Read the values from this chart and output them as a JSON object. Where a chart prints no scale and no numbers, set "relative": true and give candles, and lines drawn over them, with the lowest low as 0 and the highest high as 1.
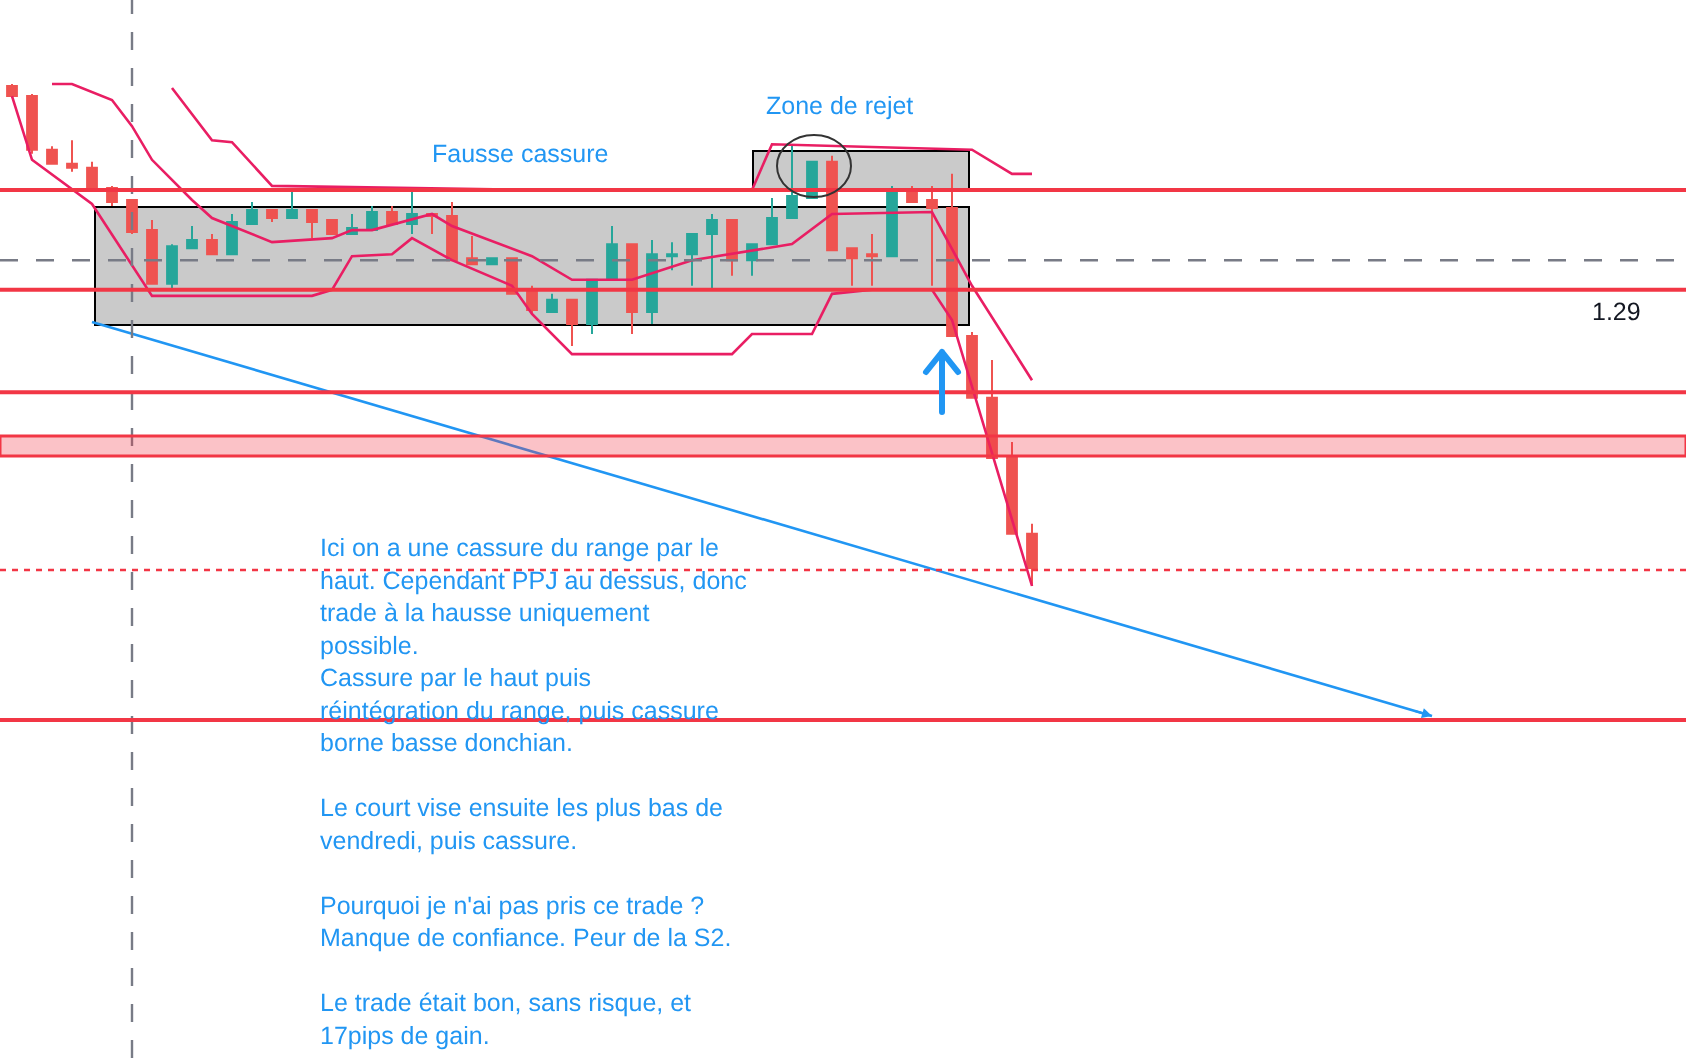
{
  "chart_data": {
    "type": "candlestick",
    "relative": true,
    "grid": false,
    "categories": [
      null,
      null,
      null,
      null,
      null,
      null,
      null,
      null,
      null,
      null,
      null,
      null,
      null,
      null,
      null,
      null,
      null,
      null,
      null,
      null,
      null,
      null,
      null,
      null,
      null,
      null,
      null,
      null,
      null,
      null,
      null,
      null,
      null,
      null,
      null,
      null,
      null,
      null,
      null,
      null,
      null,
      null,
      null,
      null,
      null,
      null,
      null,
      null,
      null,
      null,
      null,
      null,
      null,
      null,
      null,
      null,
      null,
      null,
      null,
      null,
      null,
      null,
      null,
      null,
      null,
      null,
      null,
      null,
      null,
      null,
      null,
      null,
      null,
      null,
      null,
      null,
      null,
      null,
      null,
      null,
      null,
      null,
      null,
      null
    ],
    "ohlc": [
      [
        0.996,
        1,
        0.972,
        0.976
      ],
      [
        0.976,
        0.98,
        0.861,
        0.869
      ],
      [
        0.869,
        0.876,
        0.841,
        0.841
      ],
      [
        0.841,
        0.888,
        0.825,
        0.833
      ],
      [
        0.833,
        0.845,
        0.793,
        0.793
      ],
      [
        0.793,
        0.797,
        0.757,
        0.765
      ],
      [
        0.769,
        0.769,
        0.701,
        0.705
      ],
      [
        0.709,
        0.729,
        0.602,
        0.602
      ],
      [
        0.602,
        0.681,
        0.59,
        0.677
      ],
      [
        0.673,
        0.717,
        0.673,
        0.689
      ],
      [
        0.689,
        0.701,
        0.661,
        0.661
      ],
      [
        0.661,
        0.741,
        0.661,
        0.725
      ],
      [
        0.721,
        0.765,
        0.721,
        0.749
      ],
      [
        0.749,
        0.749,
        0.725,
        0.733
      ],
      [
        0.733,
        0.785,
        0.733,
        0.749
      ],
      [
        0.749,
        0.749,
        0.693,
        0.725
      ],
      [
        0.729,
        0.729,
        0.701,
        0.701
      ],
      [
        0.701,
        0.741,
        0.701,
        0.713
      ],
      [
        0.709,
        0.757,
        0.709,
        0.745
      ],
      [
        0.745,
        0.757,
        0.721,
        0.721
      ],
      [
        0.721,
        0.785,
        0.701,
        0.741
      ],
      [
        0.741,
        0.741,
        0.701,
        0.737
      ],
      [
        0.737,
        0.765,
        0.649,
        0.649
      ],
      [
        0.653,
        0.697,
        0.641,
        0.641
      ],
      [
        0.641,
        0.653,
        0.641,
        0.653
      ],
      [
        0.653,
        0.653,
        0.582,
        0.582
      ],
      [
        0.586,
        0.598,
        0.542,
        0.55
      ],
      [
        0.546,
        0.582,
        0.546,
        0.57
      ],
      [
        0.57,
        0.57,
        0.478,
        0.522
      ],
      [
        0.522,
        0.61,
        0.502,
        0.61
      ],
      [
        0.61,
        0.717,
        0.61,
        0.681
      ],
      [
        0.681,
        0.681,
        0.502,
        0.546
      ],
      [
        0.546,
        0.689,
        0.522,
        0.661
      ],
      [
        0.657,
        0.685,
        0.629,
        0.661
      ],
      [
        0.661,
        0.701,
        0.598,
        0.701
      ],
      [
        0.701,
        0.741,
        0.59,
        0.729
      ],
      [
        0.729,
        0.729,
        0.618,
        0.649
      ],
      [
        0.649,
        0.681,
        0.618,
        0.681
      ],
      [
        0.681,
        0.773,
        0.681,
        0.733
      ],
      [
        0.733,
        0.88,
        0.733,
        0.777
      ],
      [
        0.773,
        0.845,
        0.773,
        0.845
      ],
      [
        0.845,
        0.857,
        0.669,
        0.669
      ],
      [
        0.673,
        0.673,
        0.598,
        0.653
      ],
      [
        0.661,
        0.701,
        0.598,
        0.657
      ],
      [
        0.657,
        0.797,
        0.657,
        0.789
      ],
      [
        0.789,
        0.797,
        0.765,
        0.765
      ],
      [
        0.769,
        0.797,
        0.598,
        0.753
      ],
      [
        0.753,
        0.821,
        0.498,
        0.498
      ],
      [
        0.498,
        0.506,
        0.375,
        0.375
      ],
      [
        0.375,
        0.45,
        0.255,
        0.255
      ],
      [
        0.259,
        0.287,
        0.104,
        0.104
      ],
      [
        0.104,
        0.124,
        0,
        0.036
      ],
      null,
      null,
      null,
      null,
      null,
      null,
      null,
      null,
      null,
      null,
      null,
      null,
      null,
      null,
      null,
      null,
      null,
      null,
      null,
      null,
      null,
      null,
      null,
      null,
      null,
      null,
      null,
      null,
      null,
      null,
      null,
      null
    ],
    "series": [
      {
        "type": "line",
        "color": "#e91e63",
        "values": [
          null,
          null,
          null,
          null,
          null,
          null,
          null,
          null,
          0.992,
          null,
          0.888,
          0.884,
          null,
          0.797,
          null,
          null,
          null,
          null,
          null,
          null,
          null,
          null,
          null,
          null,
          null,
          null,
          0.789,
          null,
          null,
          null,
          null,
          null,
          null,
          null,
          null,
          null,
          null,
          0.789,
          0.88,
          null,
          null,
          null,
          null,
          null,
          null,
          null,
          null,
          null,
          0.869,
          null,
          0.821,
          0.821,
          null,
          null,
          null,
          null,
          null,
          null,
          null,
          null,
          null,
          null,
          null,
          null,
          null,
          null,
          null,
          null,
          null,
          null,
          null,
          null,
          null,
          null,
          null,
          null,
          null,
          null,
          null,
          null,
          null,
          null,
          null,
          null
        ]
      },
      {
        "type": "line",
        "color": "#e91e63",
        "values": [
          null,
          null,
          1,
          1,
          null,
          0.968,
          0.916,
          0.849,
          null,
          0.769,
          0.733,
          null,
          null,
          0.685,
          null,
          null,
          0.693,
          0.709,
          0.709,
          null,
          null,
          0.741,
          0.717,
          null,
          null,
          null,
          0.657,
          null,
          0.61,
          null,
          null,
          0.61,
          null,
          null,
          0.649,
          null,
          null,
          null,
          null,
          0.681,
          null,
          0.741,
          null,
          null,
          null,
          null,
          0.745,
          null,
          0.598,
          null,
          null,
          0.41,
          null,
          null,
          null,
          null,
          null,
          null,
          null,
          null,
          null,
          null,
          null,
          null,
          null,
          null,
          null,
          null,
          null,
          null,
          null,
          null,
          null,
          null,
          null,
          null,
          null,
          null,
          null,
          null,
          null,
          null,
          null,
          null
        ]
      },
      {
        "type": "line",
        "color": "#e91e63",
        "values": [
          0.976,
          0.849,
          null,
          null,
          0.761,
          null,
          null,
          0.578,
          null,
          null,
          null,
          null,
          null,
          null,
          null,
          0.578,
          0.59,
          0.657,
          null,
          0.661,
          0.693,
          null,
          0.649,
          null,
          null,
          0.598,
          0.542,
          null,
          0.462,
          null,
          null,
          null,
          null,
          null,
          null,
          null,
          0.462,
          0.502,
          null,
          null,
          0.502,
          0.582,
          null,
          0.59,
          null,
          null,
          0.59,
          0.53,
          null,
          null,
          null,
          0,
          null,
          null,
          null,
          null,
          null,
          null,
          null,
          null,
          null,
          null,
          null,
          null,
          null,
          null,
          null,
          null,
          null,
          null,
          null,
          null,
          null,
          null,
          null,
          null,
          null,
          null,
          null,
          null,
          null,
          null,
          null,
          null
        ]
      },
      {
        "type": "line",
        "color": "#2196f3",
        "values": [
          null,
          null,
          null,
          null,
          0.526,
          null,
          null,
          null,
          null,
          null,
          null,
          null,
          null,
          null,
          null,
          null,
          null,
          null,
          null,
          null,
          null,
          null,
          null,
          null,
          null,
          null,
          null,
          null,
          null,
          null,
          null,
          null,
          null,
          null,
          null,
          null,
          null,
          null,
          null,
          null,
          null,
          null,
          null,
          null,
          null,
          null,
          null,
          null,
          null,
          null,
          null,
          null,
          null,
          null,
          null,
          null,
          null,
          null,
          null,
          null,
          null,
          null,
          null,
          null,
          null,
          null,
          null,
          null,
          null,
          null,
          null,
          -0.259,
          null,
          null,
          null,
          null,
          null,
          null,
          null,
          null,
          null,
          null,
          null,
          null
        ]
      }
    ],
    "ref_lines": [
      {
        "axis": "y",
        "value": 0.789,
        "color": "#f23645",
        "line_style": "solid"
      },
      {
        "axis": "y",
        "value": 0.59,
        "color": "#f23645",
        "line_style": "solid"
      },
      {
        "axis": "y",
        "value": 0.386,
        "color": "#f23645",
        "line_style": "solid"
      },
      {
        "axis": "y",
        "value": 0.649,
        "color": "#787b86",
        "line_style": "dashed"
      },
      {
        "axis": "y",
        "value": 0.032,
        "color": "#f23645",
        "line_style": "dotted"
      },
      {
        "axis": "y",
        "value": -0.267,
        "color": "#f23645",
        "line_style": "solid"
      }
    ],
    "bands": [
      {
        "axis": "y",
        "from": 0.259,
        "to": 0.299,
        "color": "#f23645"
      }
    ],
    "annotations": [
      "Fausse cassure",
      "Zone de rejet",
      "1.29",
      "Ici on a une cassure du range par le\nhaut. Cependant PPJ au dessus, donc\ntrade à la hausse uniquement\npossible.\nCassure par le haut puis\nréintégration du range, puis cassure\nborne basse donchian.\n\nLe court vise ensuite les plus bas de\nvendredi, puis cassure.\n\nPourquoi je n'ai pas pris ce trade ?\nManque de confiance. Peur de la S2.\n\nLe trade était bon, sans risque, et\n17pips de gain."
    ]
  }
}
